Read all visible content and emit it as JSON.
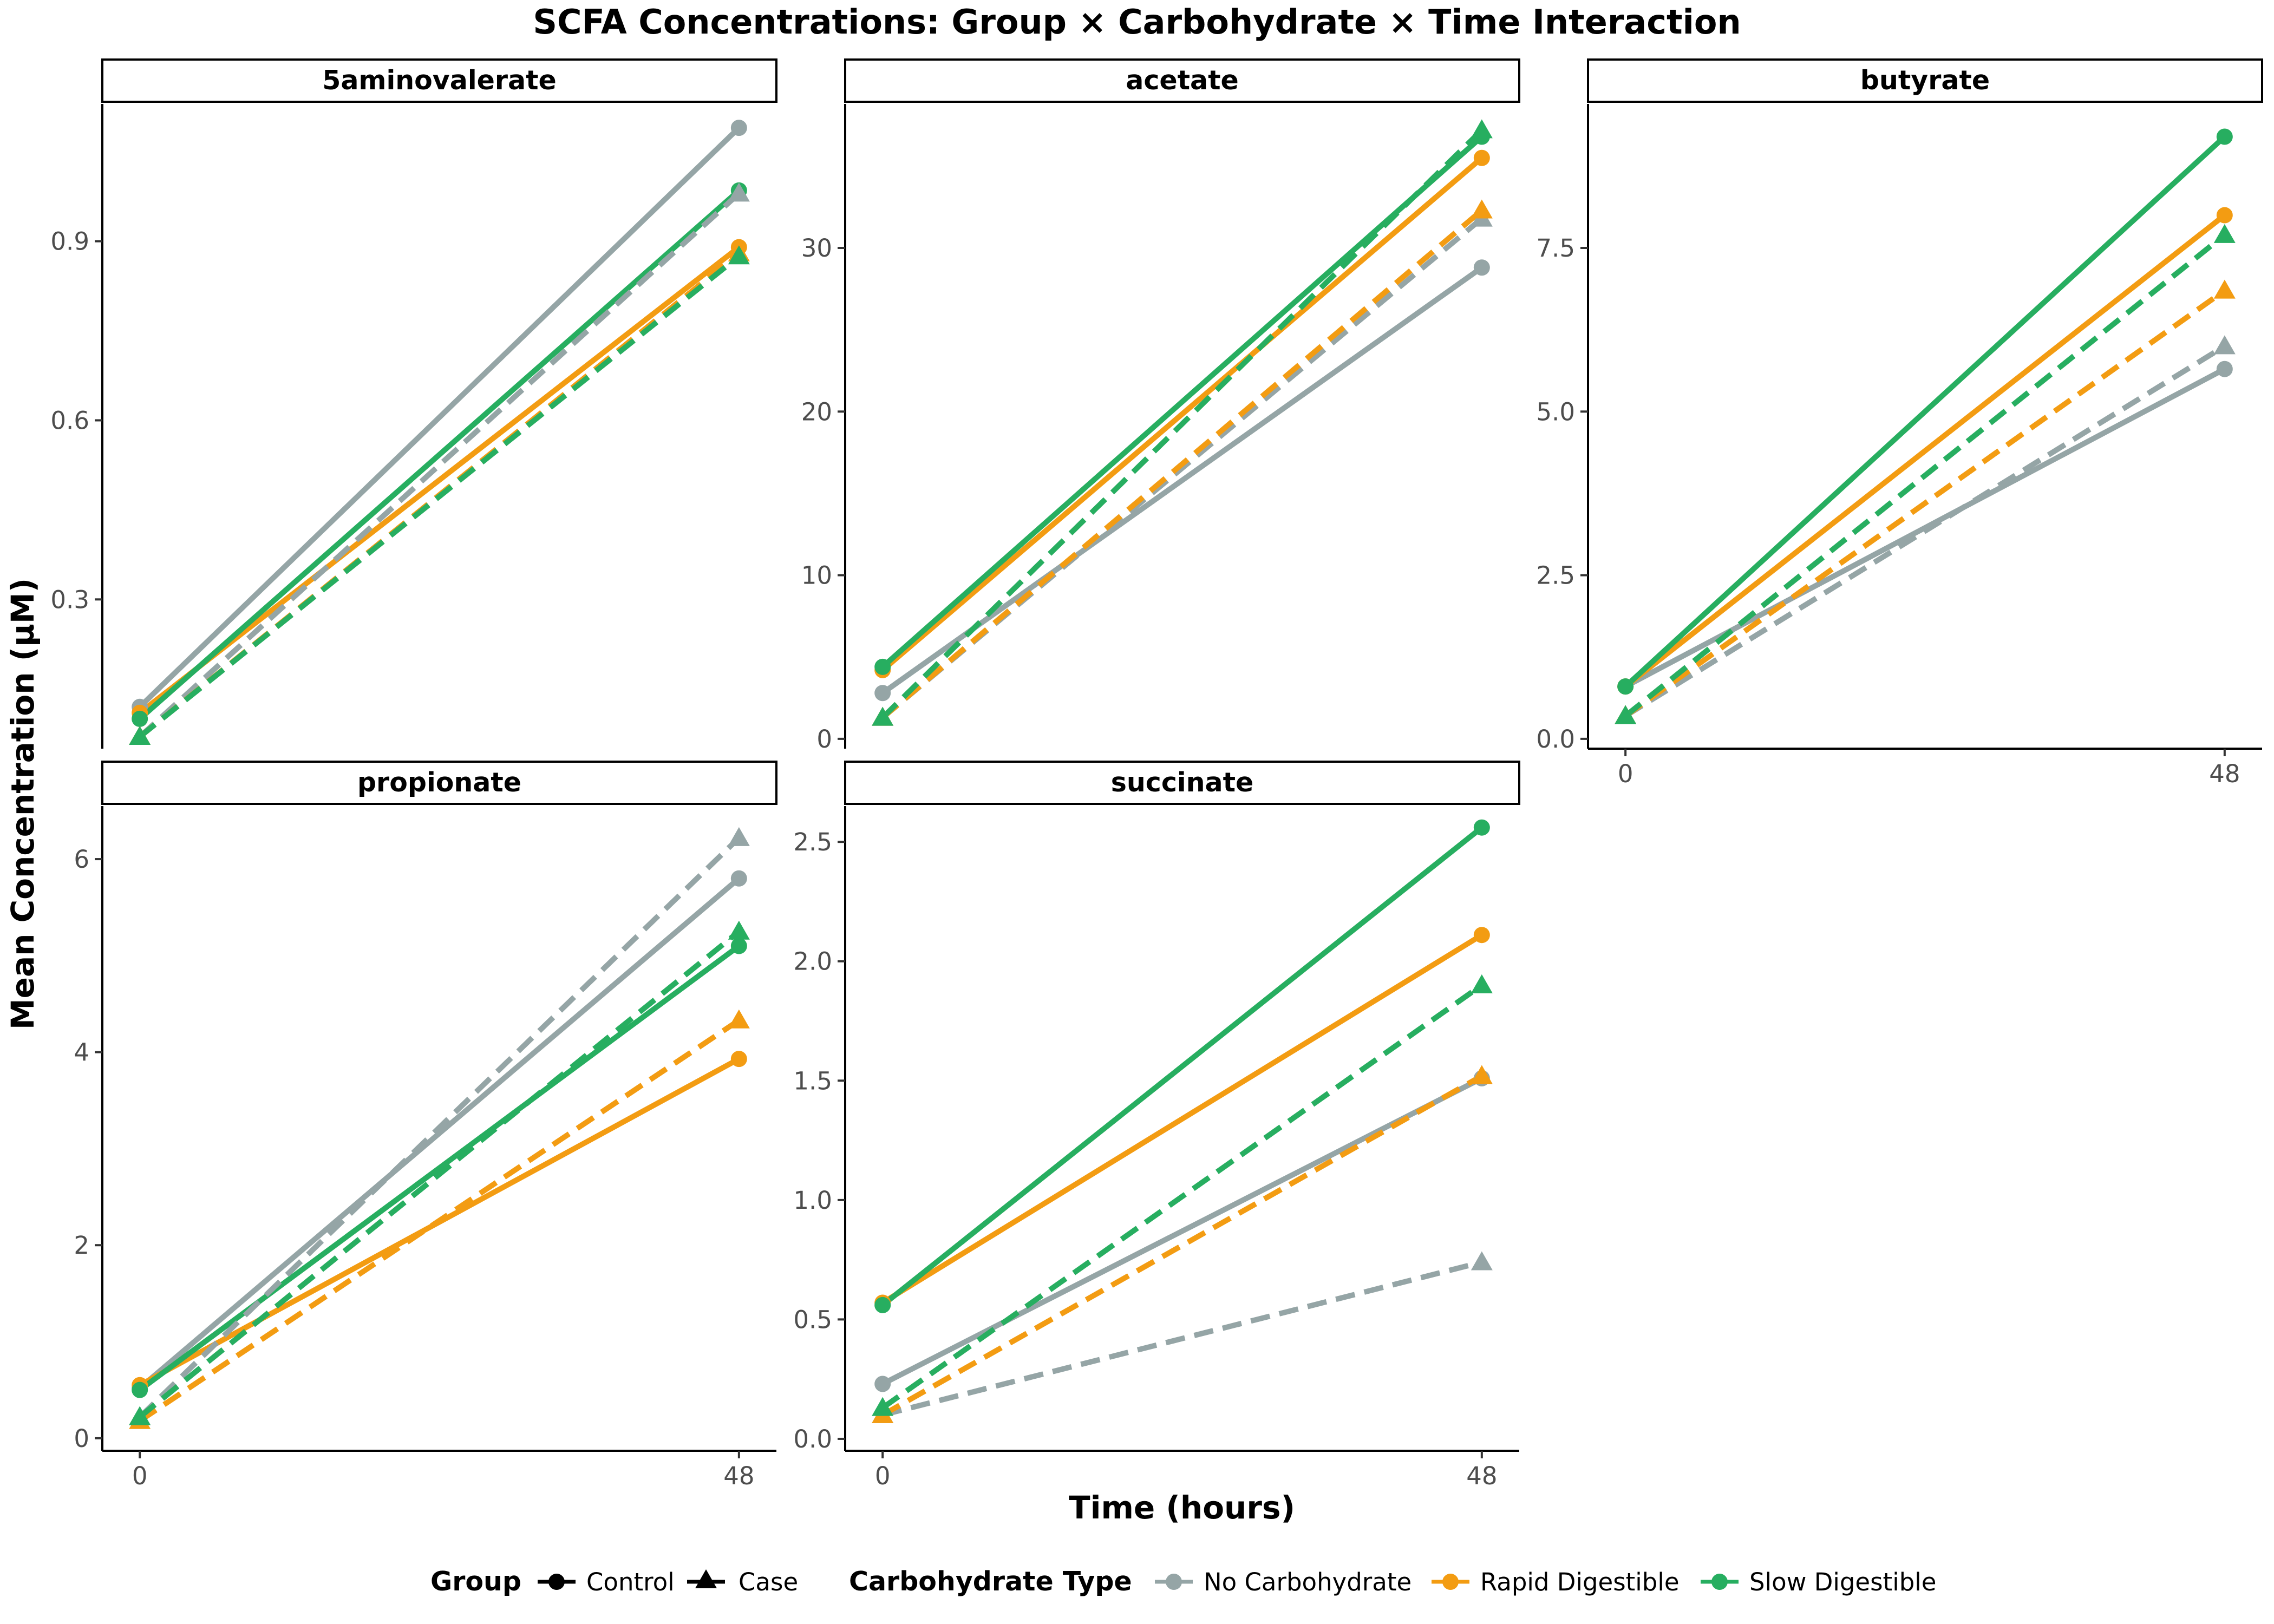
{
  "title": "SCFA Concentrations: Group × Carbohydrate × Time Interaction",
  "xlabel": "Time (hours)",
  "ylabel": "Mean Concentration (µM)",
  "legend": {
    "group_title": "Group",
    "group_items": [
      {
        "label": "Control",
        "shape": "circle"
      },
      {
        "label": "Case",
        "shape": "triangle"
      }
    ],
    "carb_title": "Carbohydrate Type",
    "carb_items": [
      {
        "label": "No Carbohydrate",
        "color": "#95a5a6"
      },
      {
        "label": "Rapid Digestible",
        "color": "#f39c12"
      },
      {
        "label": "Slow Digestible",
        "color": "#27ae60"
      }
    ],
    "placement": "bottom"
  },
  "colors": {
    "No Carbohydrate": "#95a5a6",
    "Rapid Digestible": "#f39c12",
    "Slow Digestible": "#27ae60"
  },
  "chart_data": {
    "type": "line",
    "x": [
      0,
      48
    ],
    "x_ticks": [
      "0",
      "48"
    ],
    "grid": false,
    "panels": [
      {
        "name": "5aminovalerate",
        "ylim": [
          0.05,
          1.13
        ],
        "y_ticks": [
          0.3,
          0.6,
          0.9
        ],
        "y_tick_labels": [
          "0.3",
          "0.6",
          "0.9"
        ],
        "series": [
          {
            "group": "Control",
            "carb": "No Carbohydrate",
            "values": [
              0.12,
              1.09
            ]
          },
          {
            "group": "Control",
            "carb": "Rapid Digestible",
            "values": [
              0.11,
              0.89
            ]
          },
          {
            "group": "Control",
            "carb": "Slow Digestible",
            "values": [
              0.1,
              0.985
            ]
          },
          {
            "group": "Case",
            "carb": "No Carbohydrate",
            "values": [
              0.07,
              0.98
            ]
          },
          {
            "group": "Case",
            "carb": "Rapid Digestible",
            "values": [
              0.07,
              0.88
            ]
          },
          {
            "group": "Case",
            "carb": "Slow Digestible",
            "values": [
              0.07,
              0.875
            ]
          }
        ]
      },
      {
        "name": "acetate",
        "ylim": [
          -0.6,
          38.8
        ],
        "y_ticks": [
          0,
          10,
          20,
          30
        ],
        "y_tick_labels": [
          "0",
          "10",
          "20",
          "30"
        ],
        "series": [
          {
            "group": "Control",
            "carb": "No Carbohydrate",
            "values": [
              2.8,
              28.8
            ]
          },
          {
            "group": "Control",
            "carb": "Rapid Digestible",
            "values": [
              4.2,
              35.5
            ]
          },
          {
            "group": "Control",
            "carb": "Slow Digestible",
            "values": [
              4.4,
              36.8
            ]
          },
          {
            "group": "Case",
            "carb": "No Carbohydrate",
            "values": [
              1.3,
              31.8
            ]
          },
          {
            "group": "Case",
            "carb": "Rapid Digestible",
            "values": [
              1.3,
              32.3
            ]
          },
          {
            "group": "Case",
            "carb": "Slow Digestible",
            "values": [
              1.3,
              37.2
            ]
          }
        ]
      },
      {
        "name": "butyrate",
        "ylim": [
          -0.15,
          9.7
        ],
        "y_ticks": [
          0,
          2.5,
          5,
          7.5
        ],
        "y_tick_labels": [
          "0.0",
          "2.5",
          "5.0",
          "7.5"
        ],
        "series": [
          {
            "group": "Control",
            "carb": "No Carbohydrate",
            "values": [
              0.8,
              5.65
            ]
          },
          {
            "group": "Control",
            "carb": "Rapid Digestible",
            "values": [
              0.8,
              8.0
            ]
          },
          {
            "group": "Control",
            "carb": "Slow Digestible",
            "values": [
              0.8,
              9.2
            ]
          },
          {
            "group": "Case",
            "carb": "No Carbohydrate",
            "values": [
              0.35,
              6.0
            ]
          },
          {
            "group": "Case",
            "carb": "Rapid Digestible",
            "values": [
              0.35,
              6.85
            ]
          },
          {
            "group": "Case",
            "carb": "Slow Digestible",
            "values": [
              0.35,
              7.7
            ]
          }
        ]
      },
      {
        "name": "propionate",
        "ylim": [
          -0.13,
          6.55
        ],
        "y_ticks": [
          0,
          2,
          4,
          6
        ],
        "y_tick_labels": [
          "0",
          "2",
          "4",
          "6"
        ],
        "series": [
          {
            "group": "Control",
            "carb": "No Carbohydrate",
            "values": [
              0.52,
              5.8
            ]
          },
          {
            "group": "Control",
            "carb": "Rapid Digestible",
            "values": [
              0.55,
              3.93
            ]
          },
          {
            "group": "Control",
            "carb": "Slow Digestible",
            "values": [
              0.5,
              5.1
            ]
          },
          {
            "group": "Case",
            "carb": "No Carbohydrate",
            "values": [
              0.22,
              6.22
            ]
          },
          {
            "group": "Case",
            "carb": "Rapid Digestible",
            "values": [
              0.18,
              4.33
            ]
          },
          {
            "group": "Case",
            "carb": "Slow Digestible",
            "values": [
              0.22,
              5.25
            ]
          }
        ]
      },
      {
        "name": "succinate",
        "ylim": [
          -0.05,
          2.65
        ],
        "y_ticks": [
          0,
          0.5,
          1,
          1.5,
          2,
          2.5
        ],
        "y_tick_labels": [
          "0.0",
          "0.5",
          "1.0",
          "1.5",
          "2.0",
          "2.5"
        ],
        "series": [
          {
            "group": "Control",
            "carb": "No Carbohydrate",
            "values": [
              0.23,
              1.51
            ]
          },
          {
            "group": "Control",
            "carb": "Rapid Digestible",
            "values": [
              0.57,
              2.11
            ]
          },
          {
            "group": "Control",
            "carb": "Slow Digestible",
            "values": [
              0.56,
              2.56
            ]
          },
          {
            "group": "Case",
            "carb": "No Carbohydrate",
            "values": [
              0.1,
              0.74
            ]
          },
          {
            "group": "Case",
            "carb": "Rapid Digestible",
            "values": [
              0.1,
              1.52
            ]
          },
          {
            "group": "Case",
            "carb": "Slow Digestible",
            "values": [
              0.13,
              1.9
            ]
          }
        ]
      }
    ]
  }
}
